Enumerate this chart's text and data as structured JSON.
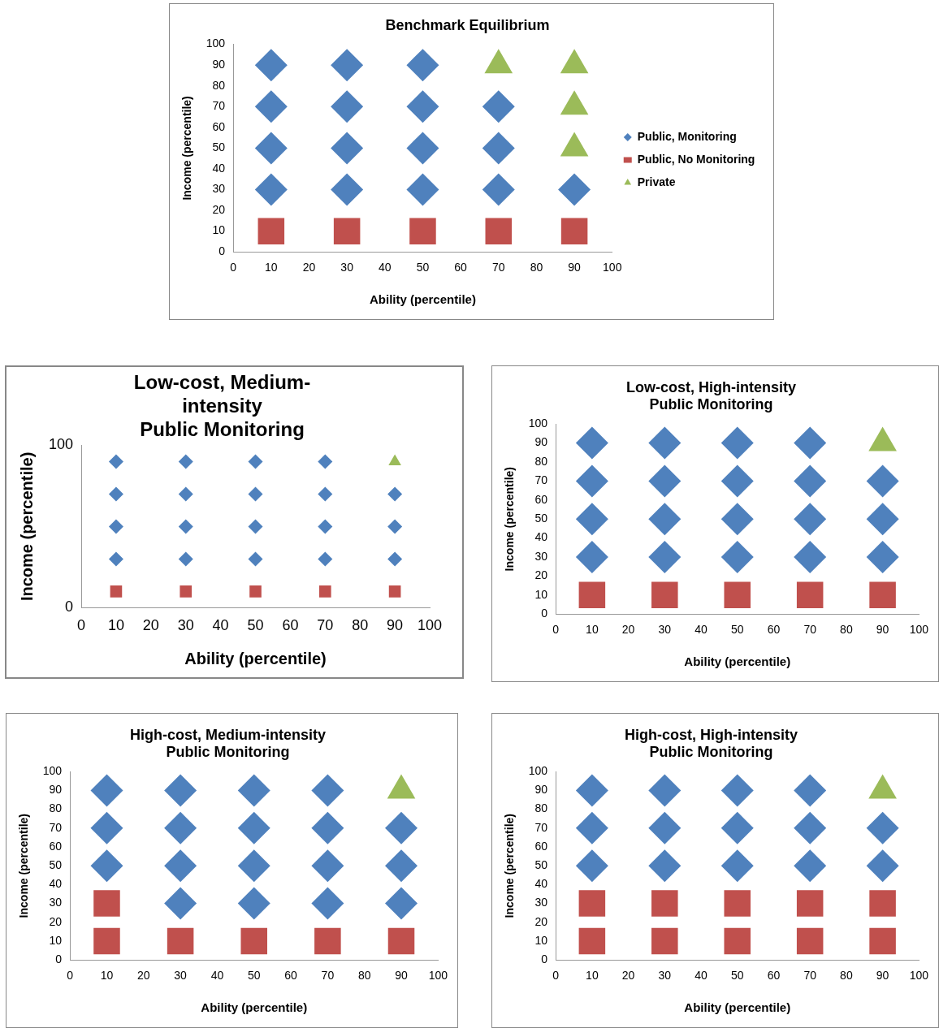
{
  "chart_data": [
    {
      "type": "scatter",
      "title": "Benchmark Equilibrium",
      "xlabel": "Ability (percentile)",
      "ylabel": "Income (percentile)",
      "xlim": [
        0,
        100
      ],
      "xticks": [
        0,
        10,
        20,
        30,
        40,
        50,
        60,
        70,
        80,
        90,
        100
      ],
      "ylim": [
        0,
        100
      ],
      "yticks": [
        0,
        10,
        20,
        30,
        40,
        50,
        60,
        70,
        80,
        90,
        100
      ],
      "grid": false,
      "legend": "right",
      "series": [
        {
          "name": "Public, Monitoring",
          "color": "#4f81bd",
          "marker": "diamond",
          "x": [
            10,
            10,
            10,
            10,
            30,
            30,
            30,
            30,
            50,
            50,
            50,
            50,
            70,
            70,
            70,
            90
          ],
          "values": [
            30,
            50,
            70,
            90,
            30,
            50,
            70,
            90,
            30,
            50,
            70,
            90,
            30,
            50,
            70,
            30
          ]
        },
        {
          "name": "Public, No Monitoring",
          "color": "#c0504d",
          "marker": "square",
          "x": [
            10,
            30,
            50,
            70,
            90
          ],
          "values": [
            10,
            10,
            10,
            10,
            10
          ]
        },
        {
          "name": "Private",
          "color": "#9bbb59",
          "marker": "triangle",
          "x": [
            70,
            90,
            90,
            90
          ],
          "values": [
            90,
            50,
            70,
            90
          ]
        }
      ]
    },
    {
      "type": "scatter",
      "title": "Low-cost, Medium-\nintensity\nPublic Monitoring",
      "xlabel": "Ability (percentile)",
      "ylabel": "Income (percentile)",
      "xlim": [
        0,
        100
      ],
      "xticks": [
        0,
        10,
        20,
        30,
        40,
        50,
        60,
        70,
        80,
        90,
        100
      ],
      "ylim": [
        0,
        100
      ],
      "yticks": [
        0,
        100
      ],
      "grid": false,
      "legend": false,
      "series": [
        {
          "color": "#4f81bd",
          "marker": "diamond",
          "x": [
            10,
            10,
            10,
            10,
            30,
            30,
            30,
            30,
            50,
            50,
            50,
            50,
            70,
            70,
            70,
            70,
            90,
            90,
            90
          ],
          "values": [
            30,
            50,
            70,
            90,
            30,
            50,
            70,
            90,
            30,
            50,
            70,
            90,
            30,
            50,
            70,
            90,
            30,
            50,
            70
          ]
        },
        {
          "color": "#c0504d",
          "marker": "square",
          "x": [
            10,
            30,
            50,
            70,
            90
          ],
          "values": [
            10,
            10,
            10,
            10,
            10
          ]
        },
        {
          "color": "#9bbb59",
          "marker": "triangle",
          "x": [
            90
          ],
          "values": [
            90
          ]
        }
      ]
    },
    {
      "type": "scatter",
      "title": "Low-cost, High-intensity\nPublic Monitoring",
      "xlabel": "Ability (percentile)",
      "ylabel": "Income (percentile)",
      "xlim": [
        0,
        100
      ],
      "xticks": [
        0,
        10,
        20,
        30,
        40,
        50,
        60,
        70,
        80,
        90,
        100
      ],
      "ylim": [
        0,
        100
      ],
      "yticks": [
        0,
        10,
        20,
        30,
        40,
        50,
        60,
        70,
        80,
        90,
        100
      ],
      "grid": false,
      "legend": false,
      "series": [
        {
          "color": "#4f81bd",
          "marker": "diamond",
          "x": [
            10,
            10,
            10,
            10,
            30,
            30,
            30,
            30,
            50,
            50,
            50,
            50,
            70,
            70,
            70,
            70,
            90,
            90,
            90
          ],
          "values": [
            30,
            50,
            70,
            90,
            30,
            50,
            70,
            90,
            30,
            50,
            70,
            90,
            30,
            50,
            70,
            90,
            30,
            50,
            70
          ]
        },
        {
          "color": "#c0504d",
          "marker": "square",
          "x": [
            10,
            30,
            50,
            70,
            90
          ],
          "values": [
            10,
            10,
            10,
            10,
            10
          ]
        },
        {
          "color": "#9bbb59",
          "marker": "triangle",
          "x": [
            90
          ],
          "values": [
            90
          ]
        }
      ]
    },
    {
      "type": "scatter",
      "title": "High-cost, Medium-intensity\nPublic Monitoring",
      "xlabel": "Ability (percentile)",
      "ylabel": "Income (percentile)",
      "xlim": [
        0,
        100
      ],
      "xticks": [
        0,
        10,
        20,
        30,
        40,
        50,
        60,
        70,
        80,
        90,
        100
      ],
      "ylim": [
        0,
        100
      ],
      "yticks": [
        0,
        10,
        20,
        30,
        40,
        50,
        60,
        70,
        80,
        90,
        100
      ],
      "grid": false,
      "legend": false,
      "series": [
        {
          "color": "#4f81bd",
          "marker": "diamond",
          "x": [
            10,
            10,
            10,
            30,
            30,
            30,
            30,
            50,
            50,
            50,
            50,
            70,
            70,
            70,
            70,
            90,
            90,
            90
          ],
          "values": [
            50,
            70,
            90,
            30,
            50,
            70,
            90,
            30,
            50,
            70,
            90,
            30,
            50,
            70,
            90,
            30,
            50,
            70
          ]
        },
        {
          "color": "#c0504d",
          "marker": "square",
          "x": [
            10,
            10,
            30,
            50,
            70,
            90
          ],
          "values": [
            10,
            30,
            10,
            10,
            10,
            10
          ]
        },
        {
          "color": "#9bbb59",
          "marker": "triangle",
          "x": [
            90
          ],
          "values": [
            90
          ]
        }
      ]
    },
    {
      "type": "scatter",
      "title": "High-cost, High-intensity\nPublic Monitoring",
      "xlabel": "Ability (percentile)",
      "ylabel": "Income (percentile)",
      "xlim": [
        0,
        100
      ],
      "xticks": [
        0,
        10,
        20,
        30,
        40,
        50,
        60,
        70,
        80,
        90,
        100
      ],
      "ylim": [
        0,
        100
      ],
      "yticks": [
        0,
        10,
        20,
        30,
        40,
        50,
        60,
        70,
        80,
        90,
        100
      ],
      "grid": false,
      "legend": false,
      "series": [
        {
          "color": "#4f81bd",
          "marker": "diamond",
          "x": [
            10,
            10,
            10,
            30,
            30,
            30,
            50,
            50,
            50,
            70,
            70,
            70,
            90,
            90
          ],
          "values": [
            50,
            70,
            90,
            50,
            70,
            90,
            50,
            70,
            90,
            50,
            70,
            90,
            50,
            70
          ]
        },
        {
          "color": "#c0504d",
          "marker": "square",
          "x": [
            10,
            10,
            30,
            30,
            50,
            50,
            70,
            70,
            90,
            90
          ],
          "values": [
            10,
            30,
            10,
            30,
            10,
            30,
            10,
            30,
            10,
            30
          ]
        },
        {
          "color": "#9bbb59",
          "marker": "triangle",
          "x": [
            90
          ],
          "values": [
            90
          ]
        }
      ]
    }
  ]
}
